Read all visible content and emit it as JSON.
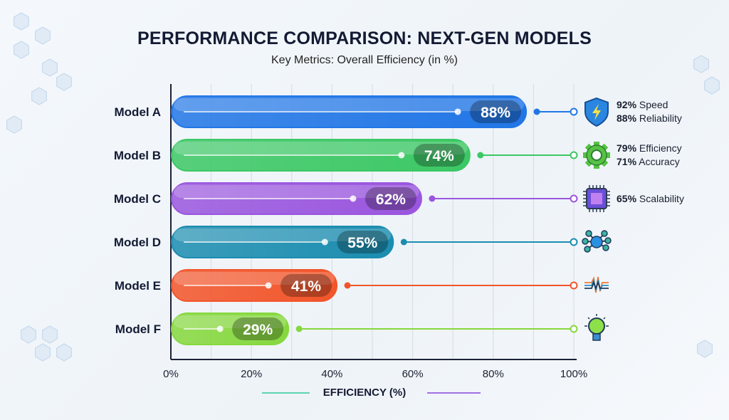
{
  "chart_data": {
    "type": "bar",
    "orientation": "horizontal",
    "title": "PERFORMANCE COMPARISON: NEXT-GEN MODELS",
    "subtitle": "Key Metrics: Overall Efficiency (in %)",
    "xlabel": "EFFICIENCY (%)",
    "ylabel": "",
    "xlim": [
      0,
      100
    ],
    "x_ticks": [
      "0%",
      "20%",
      "40%",
      "60%",
      "80%",
      "100%"
    ],
    "grid": true,
    "categories": [
      "Model A",
      "Model B",
      "Model C",
      "Model D",
      "Model E",
      "Model F"
    ],
    "values": [
      88,
      74,
      62,
      55,
      41,
      29
    ],
    "data_labels": [
      "88%",
      "74%",
      "62%",
      "55%",
      "41%",
      "29%"
    ],
    "colors": [
      "#2176e6",
      "#3cc865",
      "#9a56de",
      "#1b8db0",
      "#f2552a",
      "#86d83e"
    ],
    "annotations": [
      {
        "icon": "shield-lightning-icon",
        "lines": [
          [
            "92%",
            "Speed"
          ],
          [
            "88%",
            "Reliability"
          ]
        ]
      },
      {
        "icon": "gear-icon",
        "lines": [
          [
            "79%",
            "Efficiency"
          ],
          [
            "71%",
            "Accuracy"
          ]
        ]
      },
      {
        "icon": "chip-icon",
        "lines": [
          [
            "65%",
            "Scalability"
          ]
        ]
      },
      {
        "icon": "network-icon",
        "lines": []
      },
      {
        "icon": "waveform-icon",
        "lines": []
      },
      {
        "icon": "lightbulb-icon",
        "lines": []
      }
    ]
  }
}
